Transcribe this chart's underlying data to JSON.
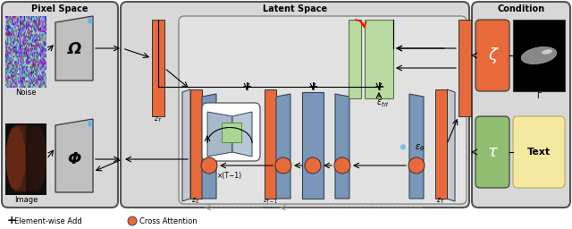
{
  "fig_width": 6.4,
  "fig_height": 2.56,
  "dpi": 100,
  "orange": "#E8693A",
  "green_light": "#B8D9A0",
  "blue_gray": "#7A96B8",
  "yellow_light": "#F5E8A0",
  "section_bg": "#D8D8D8",
  "inner_bg": "#E2E2E2",
  "white": "#FFFFFF",
  "black": "#000000",
  "dark_gray": "#444444",
  "mid_gray": "#AAAAAA",
  "snowflake_color": "#30AAEE",
  "green_tau": "#90BE70",
  "title_pixel": "Pixel Space",
  "title_latent": "Latent Space",
  "title_condition": "Condition",
  "label_noise": "Noise",
  "label_image": "Image",
  "label_gamma": "Γ",
  "label_text": "Text",
  "label_element_add": "Element-wise Add",
  "label_cross_attn": "Cross Attention",
  "repeat_label": "×(T−1)"
}
